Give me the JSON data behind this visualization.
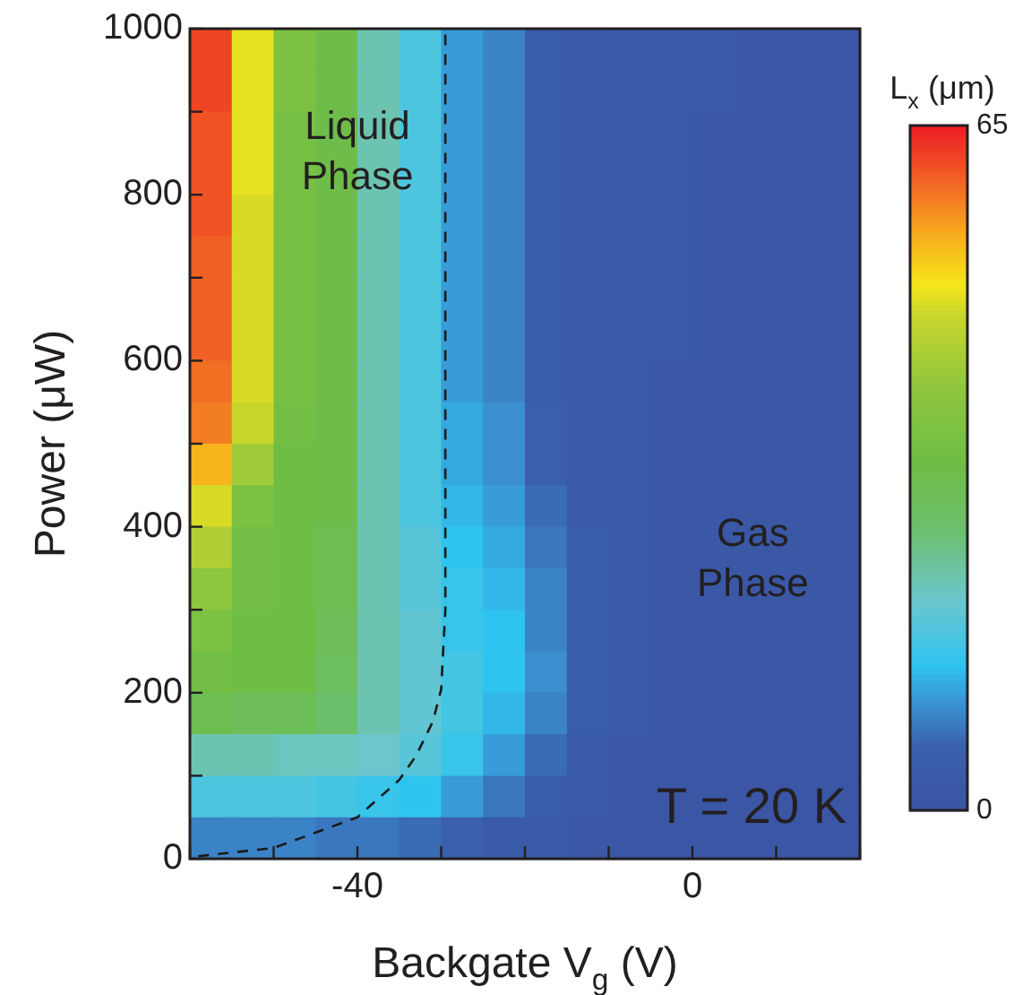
{
  "chart_data": {
    "type": "heatmap",
    "xlabel": "Backgate V$_{g}$ (V)",
    "ylabel": "Power (μW)",
    "clabel": "L$_{x}$ (μm)",
    "x": [
      -57.5,
      -52.5,
      -47.5,
      -42.5,
      -37.5,
      -32.5,
      -27.5,
      -22.5,
      -17.5,
      -12.5,
      -7.5,
      -2.5,
      2.5,
      7.5,
      12.5,
      17.5
    ],
    "xlim": [
      -60,
      20
    ],
    "xticks": [
      {
        "value": -60,
        "label": null
      },
      {
        "value": -50,
        "label": null
      },
      -40,
      {
        "value": -30,
        "label": null
      },
      {
        "value": -20,
        "label": null
      },
      {
        "value": -10,
        "label": null
      },
      0,
      {
        "value": 10,
        "label": null
      },
      {
        "value": 20,
        "label": null
      }
    ],
    "ylim": [
      0,
      1000
    ],
    "yticks": [
      0,
      {
        "value": 100,
        "label": null
      },
      200,
      {
        "value": 300,
        "label": null
      },
      400,
      {
        "value": 500,
        "label": null
      },
      600,
      {
        "value": 700,
        "label": null
      },
      800,
      {
        "value": 900,
        "label": null
      },
      1000
    ],
    "cells": [
      [
        62,
        49,
        36,
        32,
        22,
        17,
        11,
        9,
        5,
        4,
        3,
        3,
        3,
        2,
        2,
        2
      ],
      [
        62,
        49,
        36,
        32,
        22,
        17,
        11,
        9,
        5,
        4,
        3,
        3,
        3,
        2,
        2,
        2
      ],
      [
        61,
        49,
        35,
        32,
        22,
        17,
        11,
        9,
        5,
        4,
        3,
        3,
        2,
        2,
        2,
        2
      ],
      [
        61,
        49,
        35,
        32,
        22,
        17,
        11,
        9,
        5,
        4,
        3,
        3,
        2,
        2,
        2,
        2
      ],
      [
        61,
        48,
        35,
        32,
        22,
        17,
        11,
        9,
        5,
        4,
        3,
        3,
        2,
        2,
        2,
        2
      ],
      [
        60,
        48,
        35,
        32,
        22,
        17,
        11,
        9,
        5,
        4,
        3,
        3,
        2,
        2,
        2,
        2
      ],
      [
        60,
        48,
        35,
        32,
        22,
        17,
        11,
        9,
        5,
        4,
        3,
        3,
        2,
        2,
        2,
        2
      ],
      [
        60,
        48,
        35,
        32,
        22,
        17,
        11,
        9,
        5,
        4,
        3,
        3,
        2,
        2,
        2,
        2
      ],
      [
        59,
        48,
        35,
        32,
        22,
        17,
        11,
        9,
        5,
        4,
        3,
        2,
        2,
        2,
        2,
        2
      ],
      [
        58,
        47,
        34,
        32,
        22,
        17,
        12,
        10,
        6,
        4,
        3,
        2,
        2,
        2,
        2,
        2
      ],
      [
        54,
        42,
        33,
        32,
        22,
        17,
        12,
        10,
        6,
        4,
        3,
        2,
        2,
        2,
        2,
        2
      ],
      [
        48,
        36,
        33,
        32,
        22,
        17,
        13,
        11,
        7,
        4,
        3,
        2,
        2,
        2,
        2,
        2
      ],
      [
        44,
        34,
        33,
        31,
        22,
        18,
        14,
        12,
        8,
        5,
        3,
        2,
        2,
        2,
        2,
        2
      ],
      [
        40,
        34,
        33,
        31,
        22,
        18,
        15,
        13,
        9,
        5,
        3,
        2,
        2,
        2,
        2,
        2
      ],
      [
        36,
        33,
        33,
        30,
        22,
        19,
        15,
        14,
        9,
        5,
        3,
        2,
        2,
        2,
        2,
        2
      ],
      [
        34,
        33,
        33,
        29,
        22,
        19,
        16,
        14,
        10,
        5,
        3,
        2,
        2,
        2,
        2,
        2
      ],
      [
        31,
        30,
        30,
        27,
        22,
        19,
        16,
        13,
        9,
        5,
        3,
        2,
        2,
        2,
        2,
        2
      ],
      [
        22,
        22,
        21,
        21,
        20,
        18,
        15,
        11,
        7,
        4,
        2,
        2,
        2,
        1,
        1,
        1
      ],
      [
        17,
        17,
        17,
        16,
        15,
        14,
        11,
        8,
        5,
        3,
        2,
        1,
        1,
        1,
        1,
        1
      ],
      [
        9,
        9,
        9,
        8,
        8,
        7,
        6,
        4,
        3,
        2,
        1,
        1,
        1,
        1,
        1,
        1
      ]
    ],
    "clim": [
      0,
      65
    ],
    "cticks": [
      0,
      65
    ],
    "series": [
      {
        "type": "line",
        "color": "#1a1a1a",
        "line_style": "dashed",
        "x": [
          -59,
          -50,
          -40,
          -35,
          -33,
          -31,
          -30,
          -29.5,
          -29.5
        ],
        "values": [
          3,
          13,
          50,
          95,
          124,
          165,
          204,
          300,
          1000
        ]
      }
    ],
    "annotations": [
      "Liquid Phase",
      "Gas Phase",
      "T = 20 K"
    ]
  }
}
